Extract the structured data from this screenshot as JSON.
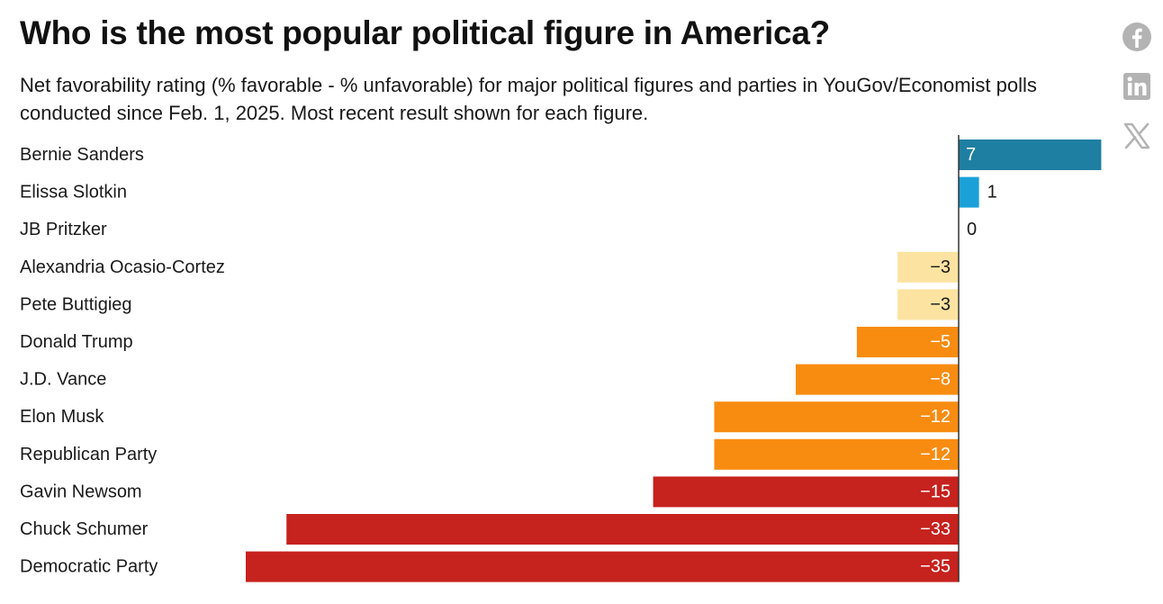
{
  "title": "Who is the most popular political figure in America?",
  "subtitle": "Net favorability rating (% favorable - % unfavorable) for major political figures and parties in YouGov/Economist polls conducted since Feb. 1, 2025. Most recent result shown for each figure.",
  "share": {
    "facebook": "facebook-icon",
    "linkedin": "linkedin-icon",
    "x": "x-icon",
    "icon_color": "#b3b3b3"
  },
  "chart_data": {
    "type": "bar",
    "orientation": "horizontal",
    "title": "Who is the most popular political figure in America?",
    "xlabel": "",
    "ylabel": "",
    "xlim": [
      -35,
      7
    ],
    "grid": false,
    "categories": [
      "Bernie Sanders",
      "Elissa Slotkin",
      "JB Pritzker",
      "Alexandria Ocasio-Cortez",
      "Pete Buttigieg",
      "Donald Trump",
      "J.D. Vance",
      "Elon Musk",
      "Republican Party",
      "Gavin Newsom",
      "Chuck Schumer",
      "Democratic Party"
    ],
    "values": [
      7,
      1,
      0,
      -3,
      -3,
      -5,
      -8,
      -12,
      -12,
      -15,
      -33,
      -35
    ],
    "value_labels": [
      "7",
      "1",
      "0",
      "−3",
      "−3",
      "−5",
      "−8",
      "−12",
      "−12",
      "−15",
      "−33",
      "−35"
    ],
    "colors": [
      "#1f7fa2",
      "#1ba1d8",
      "#1ba1d8",
      "#fde3a1",
      "#fde3a1",
      "#f78c11",
      "#f78c11",
      "#f78c11",
      "#f78c11",
      "#c6221e",
      "#c6221e",
      "#c6221e"
    ],
    "label_colors": [
      "#ffffff",
      "#1a1a1a",
      "#1a1a1a",
      "#1a1a1a",
      "#1a1a1a",
      "#ffffff",
      "#ffffff",
      "#ffffff",
      "#ffffff",
      "#ffffff",
      "#ffffff",
      "#ffffff"
    ]
  }
}
